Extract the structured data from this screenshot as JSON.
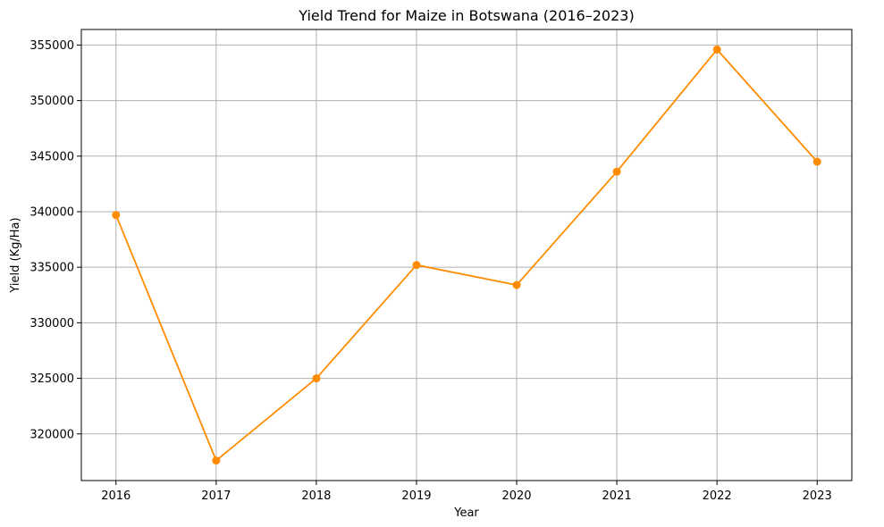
{
  "chart_data": {
    "type": "line",
    "title": "Yield Trend for Maize in Botswana (2016–2023)",
    "xlabel": "Year",
    "ylabel": "Yield (Kg/Ha)",
    "x": [
      "2016",
      "2017",
      "2018",
      "2019",
      "2020",
      "2021",
      "2022",
      "2023"
    ],
    "series": [
      {
        "values": [
          339700,
          317600,
          325000,
          335200,
          333400,
          343600,
          354600,
          344500
        ],
        "color": "#ff8c00",
        "marker": "circle"
      }
    ],
    "yticks": [
      320000,
      325000,
      330000,
      335000,
      340000,
      345000,
      350000,
      355000
    ],
    "ylim": [
      315800,
      356400
    ],
    "grid": true,
    "legend": "none"
  }
}
